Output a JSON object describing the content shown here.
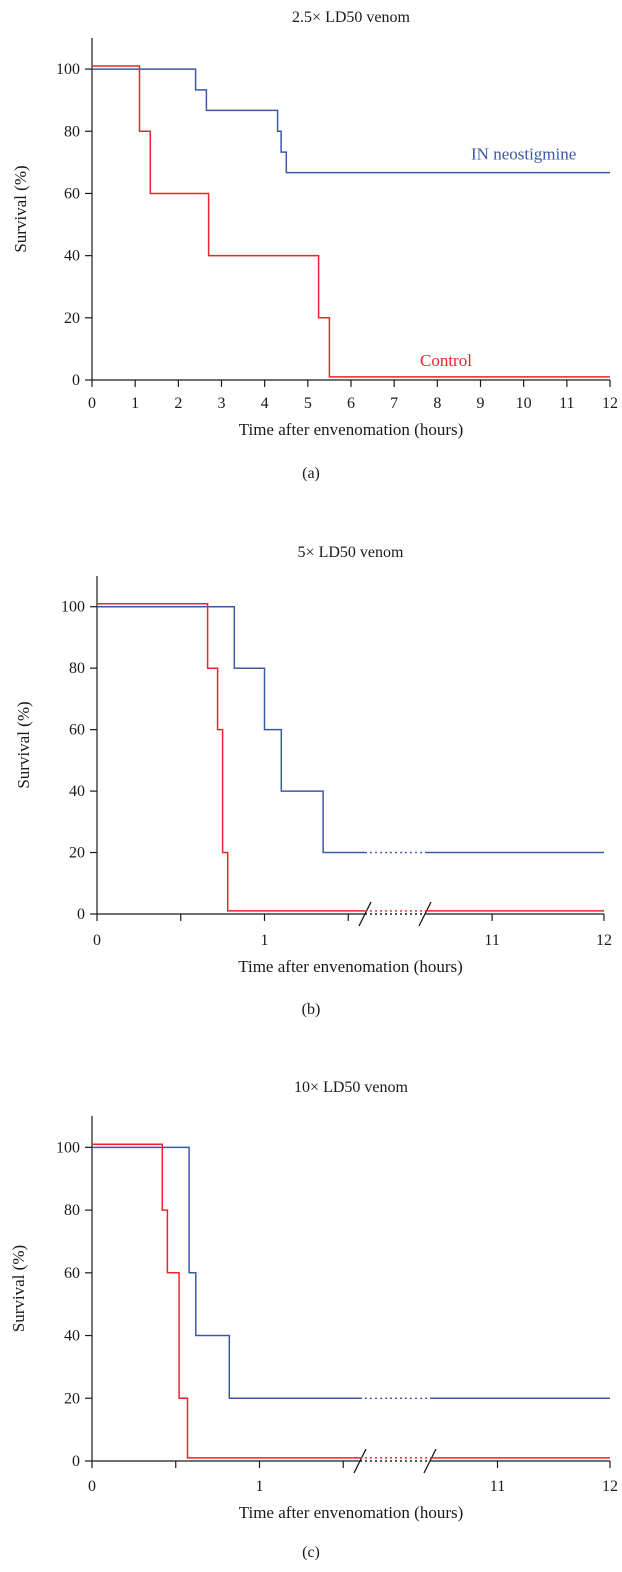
{
  "colors": {
    "neostigmine": "#3a5aa8",
    "control": "#e8252b"
  },
  "chart_data": [
    {
      "type": "line",
      "step": true,
      "panel_label": "(a)",
      "title": "2.5× LD50 venom",
      "xlabel": "Time after envenomation (hours)",
      "ylabel": "Survival (%)",
      "xlim": [
        0,
        12
      ],
      "ylim": [
        0,
        110
      ],
      "xticks": [
        0,
        1,
        2,
        3,
        4,
        5,
        6,
        7,
        8,
        9,
        10,
        11,
        12
      ],
      "xtick_labels": [
        "0",
        "1",
        "2",
        "3",
        "4",
        "5",
        "6",
        "7",
        "8",
        "9",
        "10",
        "11",
        "12"
      ],
      "yticks": [
        0,
        20,
        40,
        60,
        80,
        100
      ],
      "ytick_labels": [
        "0",
        "20",
        "40",
        "60",
        "80",
        "100"
      ],
      "series": [
        {
          "name": "IN neostigmine",
          "color_key": "neostigmine",
          "label_at": [
            10,
            71
          ],
          "points": [
            [
              0,
              100
            ],
            [
              2.4,
              100
            ],
            [
              2.4,
              93.3
            ],
            [
              2.65,
              93.3
            ],
            [
              2.65,
              86.7
            ],
            [
              4.3,
              86.7
            ],
            [
              4.3,
              80
            ],
            [
              4.38,
              80
            ],
            [
              4.38,
              73.3
            ],
            [
              4.5,
              73.3
            ],
            [
              4.5,
              66.7
            ],
            [
              12,
              66.7
            ]
          ]
        },
        {
          "name": "Control",
          "color_key": "control",
          "label_at": [
            8.2,
            4.5
          ],
          "points": [
            [
              0,
              101
            ],
            [
              1.1,
              101
            ],
            [
              1.1,
              80
            ],
            [
              1.35,
              80
            ],
            [
              1.35,
              60
            ],
            [
              2.7,
              60
            ],
            [
              2.7,
              40
            ],
            [
              5.25,
              40
            ],
            [
              5.25,
              20
            ],
            [
              5.5,
              20
            ],
            [
              5.5,
              1
            ],
            [
              12,
              1
            ]
          ]
        }
      ]
    },
    {
      "type": "line",
      "step": true,
      "broken_axis": true,
      "panel_label": "(b)",
      "title": "5× LD50 venom",
      "xlabel": "Time after envenomation (hours)",
      "ylabel": "Survival (%)",
      "ylim": [
        0,
        110
      ],
      "segments": [
        {
          "xlim": [
            0,
            1.6
          ],
          "xticks": [
            0,
            0.5,
            1,
            1.5
          ],
          "xtick_labels": [
            "0",
            "",
            "1",
            ""
          ]
        },
        {
          "xlim": [
            10.4,
            12
          ],
          "xticks": [
            11,
            12
          ],
          "xtick_labels": [
            "11",
            "12"
          ]
        }
      ],
      "yticks": [
        0,
        20,
        40,
        60,
        80,
        100
      ],
      "ytick_labels": [
        "0",
        "20",
        "40",
        "60",
        "80",
        "100"
      ],
      "series": [
        {
          "color_key": "neostigmine",
          "points": [
            [
              0,
              100
            ],
            [
              0.82,
              100
            ],
            [
              0.82,
              80
            ],
            [
              1.0,
              80
            ],
            [
              1.0,
              60
            ],
            [
              1.1,
              60
            ],
            [
              1.1,
              40
            ],
            [
              1.35,
              40
            ],
            [
              1.35,
              20
            ],
            [
              12,
              20
            ]
          ]
        },
        {
          "color_key": "control",
          "points": [
            [
              0,
              101
            ],
            [
              0.66,
              101
            ],
            [
              0.66,
              80
            ],
            [
              0.72,
              80
            ],
            [
              0.72,
              60
            ],
            [
              0.75,
              60
            ],
            [
              0.75,
              20
            ],
            [
              0.78,
              20
            ],
            [
              0.78,
              1
            ],
            [
              12,
              1
            ]
          ]
        }
      ]
    },
    {
      "type": "line",
      "step": true,
      "broken_axis": true,
      "panel_label": "(c)",
      "title": "10× LD50 venom",
      "xlabel": "Time after envenomation (hours)",
      "ylabel": "Survival (%)",
      "ylim": [
        0,
        110
      ],
      "segments": [
        {
          "xlim": [
            0,
            1.6
          ],
          "xticks": [
            0,
            0.5,
            1,
            1.5
          ],
          "xtick_labels": [
            "0",
            "",
            "1",
            ""
          ]
        },
        {
          "xlim": [
            10.4,
            12
          ],
          "xticks": [
            11,
            12
          ],
          "xtick_labels": [
            "11",
            "12"
          ]
        }
      ],
      "yticks": [
        0,
        20,
        40,
        60,
        80,
        100
      ],
      "ytick_labels": [
        "0",
        "20",
        "40",
        "60",
        "80",
        "100"
      ],
      "series": [
        {
          "color_key": "neostigmine",
          "points": [
            [
              0,
              100
            ],
            [
              0.58,
              100
            ],
            [
              0.58,
              60
            ],
            [
              0.62,
              60
            ],
            [
              0.62,
              40
            ],
            [
              0.82,
              40
            ],
            [
              0.82,
              20
            ],
            [
              12,
              20
            ]
          ]
        },
        {
          "color_key": "control",
          "points": [
            [
              0,
              101
            ],
            [
              0.42,
              101
            ],
            [
              0.42,
              80
            ],
            [
              0.45,
              80
            ],
            [
              0.45,
              60
            ],
            [
              0.52,
              60
            ],
            [
              0.52,
              20
            ],
            [
              0.57,
              20
            ],
            [
              0.57,
              1
            ],
            [
              12,
              1
            ]
          ]
        }
      ]
    }
  ]
}
